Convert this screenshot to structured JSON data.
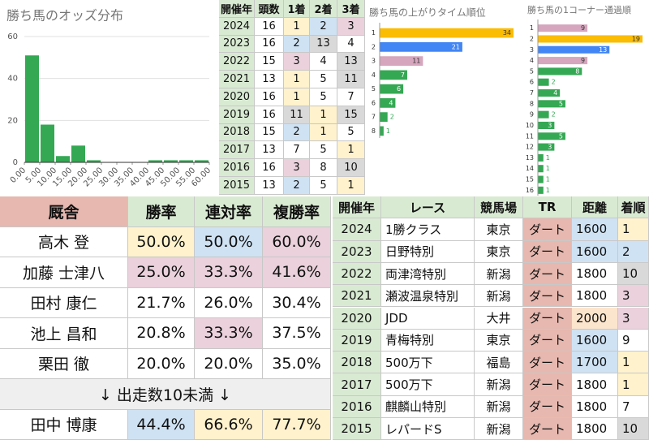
{
  "chart_data": [
    {
      "type": "histogram",
      "title": "勝ち馬のオッズ分布",
      "color": "#34a853",
      "bins": [
        0,
        5,
        10,
        15,
        20,
        25,
        30,
        35,
        40,
        45,
        50,
        55,
        60
      ],
      "values": [
        51,
        18,
        3,
        8,
        1,
        0,
        0,
        0,
        1,
        1,
        1,
        1
      ],
      "xlim": [
        0,
        60
      ],
      "xticks": [
        {
          "value": 0,
          "label": "0.00"
        },
        {
          "value": 5,
          "label": "5.00"
        },
        {
          "value": 10,
          "label": "10.00"
        },
        {
          "value": 15,
          "label": "15.00"
        },
        {
          "value": 20,
          "label": "20.00"
        },
        {
          "value": 25,
          "label": "25.00"
        },
        {
          "value": 30,
          "label": "30.00"
        },
        {
          "value": 35,
          "label": "35.00"
        },
        {
          "value": 40,
          "label": "40.00"
        },
        {
          "value": 45,
          "label": "45.00"
        },
        {
          "value": 50,
          "label": "50.00"
        },
        {
          "value": 55,
          "label": "55.00"
        },
        {
          "value": 60,
          "label": "60.00"
        }
      ],
      "ylim": [
        0,
        60
      ],
      "yticks": [
        0,
        20,
        40,
        60
      ],
      "grid": true
    },
    {
      "type": "hbar",
      "title": "勝ち馬の上がりタイム順位",
      "categories": [
        "1",
        "2",
        "3",
        "4",
        "5",
        "6",
        "7",
        "8"
      ],
      "values": [
        34,
        21,
        11,
        7,
        6,
        4,
        2,
        1
      ],
      "colors": [
        "#fbbc04",
        "#4285f4",
        "#d5a6bd",
        "#34a853",
        "#34a853",
        "#34a853",
        "#34a853",
        "#34a853"
      ]
    },
    {
      "type": "hbar",
      "title": "勝ち馬の1コーナー通過順",
      "categories": [
        "1",
        "2",
        "3",
        "4",
        "5",
        "6",
        "7",
        "8",
        "9",
        "10",
        "11",
        "12",
        "13",
        "14",
        "15",
        "16"
      ],
      "values": [
        9,
        19,
        13,
        9,
        8,
        2,
        4,
        5,
        2,
        3,
        5,
        3,
        1,
        1,
        1,
        1
      ],
      "colors": [
        "#d5a6bd",
        "#fbbc04",
        "#4285f4",
        "#d5a6bd",
        "#34a853",
        "#34a853",
        "#34a853",
        "#34a853",
        "#34a853",
        "#34a853",
        "#34a853",
        "#34a853",
        "#34a853",
        "#34a853",
        "#34a853",
        "#34a853"
      ]
    }
  ],
  "tables": {
    "results": {
      "header": [
        "開催年",
        "頭数",
        "1着",
        "2着",
        "3着"
      ],
      "rows": [
        [
          "2024",
          "16",
          "1",
          "2",
          "3"
        ],
        [
          "2023",
          "16",
          "2",
          "13",
          "4"
        ],
        [
          "2022",
          "15",
          "3",
          "4",
          "13"
        ],
        [
          "2021",
          "13",
          "1",
          "5",
          "11"
        ],
        [
          "2020",
          "16",
          "1",
          "5",
          "7"
        ],
        [
          "2019",
          "16",
          "11",
          "1",
          "15"
        ],
        [
          "2018",
          "15",
          "2",
          "1",
          "5"
        ],
        [
          "2017",
          "13",
          "7",
          "5",
          "1"
        ],
        [
          "2016",
          "16",
          "3",
          "8",
          "10"
        ],
        [
          "2015",
          "13",
          "2",
          "5",
          "1"
        ]
      ],
      "cell_colors": [
        [
          "#d9ead3",
          "#ffffff",
          "#fff2cc",
          "#cfe2f3",
          "#ead1dc"
        ],
        [
          "#d9ead3",
          "#ffffff",
          "#cfe2f3",
          "#d9d9d9",
          "#ffffff"
        ],
        [
          "#d9ead3",
          "#ffffff",
          "#ead1dc",
          "#ffffff",
          "#d9d9d9"
        ],
        [
          "#d9ead3",
          "#ffffff",
          "#fff2cc",
          "#ffffff",
          "#d9d9d9"
        ],
        [
          "#d9ead3",
          "#ffffff",
          "#fff2cc",
          "#ffffff",
          "#ffffff"
        ],
        [
          "#d9ead3",
          "#ffffff",
          "#d9d9d9",
          "#fff2cc",
          "#d9d9d9"
        ],
        [
          "#d9ead3",
          "#ffffff",
          "#cfe2f3",
          "#fff2cc",
          "#ffffff"
        ],
        [
          "#d9ead3",
          "#ffffff",
          "#ffffff",
          "#ffffff",
          "#fff2cc"
        ],
        [
          "#d9ead3",
          "#ffffff",
          "#ead1dc",
          "#ffffff",
          "#d9d9d9"
        ],
        [
          "#d9ead3",
          "#ffffff",
          "#cfe2f3",
          "#ffffff",
          "#fff2cc"
        ]
      ]
    },
    "stables": {
      "header": [
        "厩舎",
        "勝率",
        "連対率",
        "複勝率"
      ],
      "rows": [
        [
          "高木 登",
          "50.0%",
          "50.0%",
          "60.0%"
        ],
        [
          "加藤 士津八",
          "25.0%",
          "33.3%",
          "41.6%"
        ],
        [
          "田村 康仁",
          "21.7%",
          "26.0%",
          "30.4%"
        ],
        [
          "池上 昌和",
          "20.8%",
          "33.3%",
          "37.5%"
        ],
        [
          "栗田 徹",
          "20.0%",
          "20.0%",
          "35.0%"
        ]
      ],
      "cell_colors": [
        [
          "#ffffff",
          "#fff2cc",
          "#cfe2f3",
          "#ead1dc"
        ],
        [
          "#ffffff",
          "#ead1dc",
          "#ead1dc",
          "#ead1dc"
        ],
        [
          "#ffffff",
          "#ffffff",
          "#ffffff",
          "#ffffff"
        ],
        [
          "#ffffff",
          "#ffffff",
          "#ead1dc",
          "#ffffff"
        ],
        [
          "#ffffff",
          "#ffffff",
          "#ffffff",
          "#ffffff"
        ]
      ],
      "note": "↓ 出走数10未満 ↓",
      "rows_after": [
        [
          "田中 博康",
          "44.4%",
          "66.6%",
          "77.7%"
        ]
      ],
      "cell_colors_after": [
        [
          "#ffffff",
          "#cfe2f3",
          "#fff2cc",
          "#fff2cc"
        ]
      ]
    },
    "races": {
      "header": [
        "開催年",
        "レース",
        "競馬場",
        "TR",
        "距離",
        "着順"
      ],
      "rows": [
        [
          "2024",
          "1勝クラス",
          "東京",
          "ダート",
          "1600",
          "1"
        ],
        [
          "2023",
          "日野特別",
          "東京",
          "ダート",
          "1600",
          "2"
        ],
        [
          "2022",
          "両津湾特別",
          "新潟",
          "ダート",
          "1800",
          "10"
        ],
        [
          "2021",
          "瀬波温泉特別",
          "新潟",
          "ダート",
          "1800",
          "3"
        ],
        [
          "2020",
          "JDD",
          "大井",
          "ダート",
          "2000",
          "3"
        ],
        [
          "2019",
          "青梅特別",
          "東京",
          "ダート",
          "1600",
          "9"
        ],
        [
          "2018",
          "500万下",
          "福島",
          "ダート",
          "1700",
          "1"
        ],
        [
          "2017",
          "500万下",
          "新潟",
          "ダート",
          "1800",
          "1"
        ],
        [
          "2016",
          "麒麟山特別",
          "新潟",
          "ダート",
          "1800",
          "7"
        ],
        [
          "2015",
          "レパードS",
          "新潟",
          "ダート",
          "1800",
          "10"
        ]
      ],
      "cell_colors": [
        [
          "#d9ead3",
          "#ffffff",
          "#ffffff",
          "#e6b8af",
          "#cfe2f3",
          "#fff2cc"
        ],
        [
          "#d9ead3",
          "#ffffff",
          "#ffffff",
          "#e6b8af",
          "#cfe2f3",
          "#cfe2f3"
        ],
        [
          "#d9ead3",
          "#ffffff",
          "#ffffff",
          "#e6b8af",
          "#ffffff",
          "#d9d9d9"
        ],
        [
          "#d9ead3",
          "#ffffff",
          "#ffffff",
          "#e6b8af",
          "#ffffff",
          "#ead1dc"
        ],
        [
          "#d9ead3",
          "#ffffff",
          "#ffffff",
          "#e6b8af",
          "#fce5cd",
          "#ead1dc"
        ],
        [
          "#d9ead3",
          "#ffffff",
          "#ffffff",
          "#e6b8af",
          "#cfe2f3",
          "#ffffff"
        ],
        [
          "#d9ead3",
          "#ffffff",
          "#ffffff",
          "#e6b8af",
          "#cfe2f3",
          "#fff2cc"
        ],
        [
          "#d9ead3",
          "#ffffff",
          "#ffffff",
          "#e6b8af",
          "#ffffff",
          "#fff2cc"
        ],
        [
          "#d9ead3",
          "#ffffff",
          "#ffffff",
          "#e6b8af",
          "#ffffff",
          "#ffffff"
        ],
        [
          "#d9ead3",
          "#ffffff",
          "#ffffff",
          "#e6b8af",
          "#ffffff",
          "#d9d9d9"
        ]
      ]
    }
  }
}
